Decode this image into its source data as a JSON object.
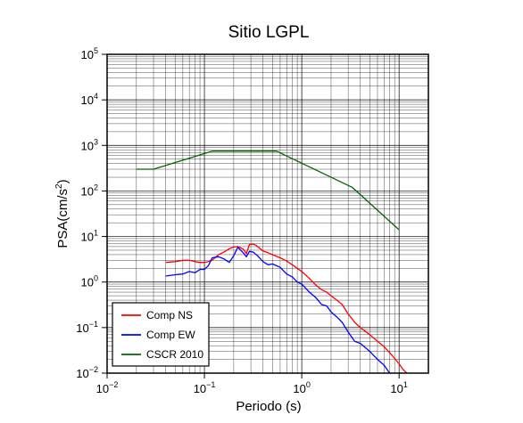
{
  "chart_data": {
    "type": "line",
    "title": "Sitio LGPL",
    "xlabel": "Periodo (s)",
    "ylabel": "PSA(cm/s",
    "ylabel_exponent": "2",
    "ylabel_close": ")",
    "x_scale": "log",
    "y_scale": "log",
    "xlim": [
      0.01,
      20
    ],
    "ylim": [
      0.01,
      100000
    ],
    "grid": true,
    "legend_position": "bottom-left",
    "x_ticks": [
      {
        "base": "10",
        "exp": "−2"
      },
      {
        "base": "10",
        "exp": "−1"
      },
      {
        "base": "10",
        "exp": "0"
      },
      {
        "base": "10",
        "exp": "1"
      }
    ],
    "y_ticks": [
      {
        "base": "10",
        "exp": "−2"
      },
      {
        "base": "10",
        "exp": "−1"
      },
      {
        "base": "10",
        "exp": "0"
      },
      {
        "base": "10",
        "exp": "1"
      },
      {
        "base": "10",
        "exp": "2"
      },
      {
        "base": "10",
        "exp": "3"
      },
      {
        "base": "10",
        "exp": "4"
      },
      {
        "base": "10",
        "exp": "5"
      }
    ],
    "series": [
      {
        "name": "Comp NS",
        "color": "#ff0000",
        "x": [
          0.04,
          0.05,
          0.06,
          0.07,
          0.08,
          0.09,
          0.1,
          0.11,
          0.12,
          0.14,
          0.16,
          0.18,
          0.2,
          0.22,
          0.25,
          0.27,
          0.29,
          0.32,
          0.35,
          0.4,
          0.45,
          0.5,
          0.6,
          0.7,
          0.8,
          0.9,
          1.0,
          1.2,
          1.4,
          1.6,
          1.8,
          2.0,
          2.3,
          2.6,
          3.0,
          3.5,
          4.0,
          5.0,
          6.0,
          7.0,
          8.0,
          9.0,
          10.0,
          11.0,
          12.0
        ],
        "y": [
          2.7,
          2.8,
          3.0,
          3.0,
          2.8,
          2.7,
          2.7,
          2.8,
          3.0,
          4.0,
          4.6,
          5.4,
          5.9,
          6.0,
          5.3,
          4.2,
          6.7,
          6.8,
          6.1,
          4.8,
          4.4,
          4.0,
          3.4,
          2.9,
          2.4,
          2.0,
          1.7,
          1.2,
          0.85,
          0.68,
          0.6,
          0.5,
          0.4,
          0.32,
          0.2,
          0.13,
          0.1,
          0.07,
          0.05,
          0.038,
          0.028,
          0.021,
          0.016,
          0.012,
          0.01
        ]
      },
      {
        "name": "Comp EW",
        "color": "#0000ff",
        "x": [
          0.04,
          0.05,
          0.06,
          0.07,
          0.08,
          0.09,
          0.1,
          0.11,
          0.12,
          0.14,
          0.16,
          0.18,
          0.2,
          0.22,
          0.25,
          0.27,
          0.29,
          0.32,
          0.35,
          0.4,
          0.45,
          0.5,
          0.6,
          0.7,
          0.8,
          0.9,
          1.0,
          1.2,
          1.4,
          1.6,
          1.8,
          2.0,
          2.3,
          2.6,
          3.0,
          3.5,
          4.0,
          5.0,
          6.0,
          7.0,
          8.0
        ],
        "y": [
          1.35,
          1.45,
          1.5,
          1.7,
          1.6,
          1.9,
          1.9,
          2.3,
          3.4,
          3.6,
          3.2,
          2.7,
          3.8,
          5.8,
          4.4,
          3.6,
          4.7,
          4.5,
          3.8,
          2.8,
          2.4,
          2.5,
          2.1,
          1.5,
          1.3,
          1.0,
          0.9,
          0.6,
          0.45,
          0.32,
          0.3,
          0.22,
          0.17,
          0.13,
          0.08,
          0.05,
          0.045,
          0.03,
          0.02,
          0.015,
          0.01
        ]
      },
      {
        "name": "CSCR 2010",
        "color": "#006400",
        "x": [
          0.02,
          0.03,
          0.12,
          0.55,
          3.3,
          10.0
        ],
        "y": [
          300,
          300,
          750,
          750,
          120,
          14
        ]
      }
    ]
  }
}
